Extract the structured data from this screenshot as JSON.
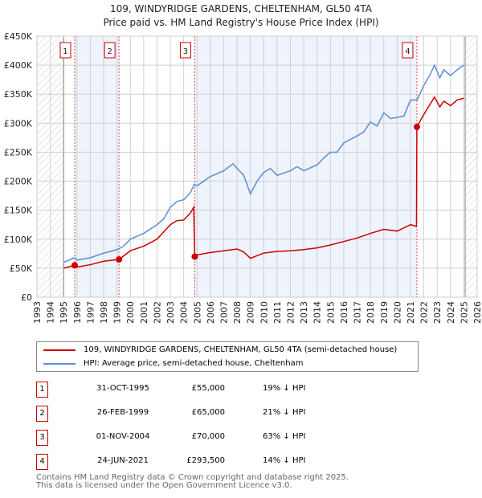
{
  "chart_data": {
    "type": "line",
    "title": "109, WINDYRIDGE GARDENS, CHELTENHAM, GL50 4TA",
    "subtitle": "Price paid vs. HM Land Registry's House Price Index (HPI)",
    "xlim": [
      1993,
      2026
    ],
    "ylim": [
      0,
      450000
    ],
    "x_ticks": [
      "1993",
      "1994",
      "1995",
      "1996",
      "1997",
      "1998",
      "1999",
      "2000",
      "2001",
      "2002",
      "2003",
      "2004",
      "2005",
      "2006",
      "2007",
      "2008",
      "2009",
      "2010",
      "2011",
      "2012",
      "2013",
      "2014",
      "2015",
      "2016",
      "2017",
      "2018",
      "2019",
      "2020",
      "2021",
      "2022",
      "2023",
      "2024",
      "2025",
      "2026"
    ],
    "y_ticks": [
      {
        "v": 0,
        "l": "£0"
      },
      {
        "v": 50000,
        "l": "£50K"
      },
      {
        "v": 100000,
        "l": "£100K"
      },
      {
        "v": 150000,
        "l": "£150K"
      },
      {
        "v": 200000,
        "l": "£200K"
      },
      {
        "v": 250000,
        "l": "£250K"
      },
      {
        "v": 300000,
        "l": "£300K"
      },
      {
        "v": 350000,
        "l": "£350K"
      },
      {
        "v": 400000,
        "l": "£400K"
      },
      {
        "v": 450000,
        "l": "£450K"
      }
    ],
    "grid": true,
    "hatched_ranges": [
      [
        1993,
        1995
      ],
      [
        2025.1,
        2026
      ]
    ],
    "shaded_ranges": [
      [
        1995.83,
        1999.15
      ],
      [
        2004.83,
        2021.48
      ]
    ],
    "series": [
      {
        "name": "109, WINDYRIDGE GARDENS, CHELTENHAM, GL50 4TA (semi-detached house)",
        "color": "#cc0000",
        "x": [
          1995,
          1995.83,
          1996,
          1997,
          1998,
          1999.15,
          2000,
          2001,
          2002,
          2003,
          2003.5,
          2004,
          2004.5,
          2004.75,
          2004.83,
          2005,
          2006,
          2007,
          2008,
          2008.5,
          2009,
          2010,
          2011,
          2012,
          2013,
          2014,
          2015,
          2016,
          2017,
          2018,
          2019,
          2020,
          2021,
          2021.45,
          2021.48,
          2022,
          2022.8,
          2023.2,
          2023.5,
          2024,
          2024.5,
          2025
        ],
        "y": [
          50000,
          55000,
          52000,
          56000,
          62000,
          65000,
          80000,
          88000,
          100000,
          125000,
          132000,
          133000,
          145000,
          155000,
          70000,
          73000,
          77000,
          80000,
          83000,
          78000,
          67000,
          76000,
          79000,
          80000,
          82000,
          85000,
          90000,
          96000,
          102000,
          110000,
          117000,
          114000,
          125000,
          122000,
          293500,
          315000,
          345000,
          328000,
          338000,
          330000,
          340000,
          343000
        ]
      },
      {
        "name": "HPI: Average price, semi-detached house, Cheltenham",
        "color": "#5b8fd4",
        "x": [
          1995,
          1995.8,
          1996,
          1997,
          1998,
          1999,
          1999.5,
          2000,
          2001,
          2002,
          2002.5,
          2003,
          2003.5,
          2004,
          2004.5,
          2004.8,
          2005,
          2006,
          2007,
          2007.7,
          2008,
          2008.5,
          2009,
          2009.5,
          2010,
          2010.5,
          2011,
          2012,
          2012.5,
          2013,
          2014,
          2014.5,
          2015,
          2015.5,
          2016,
          2017,
          2017.5,
          2018,
          2018.5,
          2019,
          2019.5,
          2020,
          2020.5,
          2021,
          2021.5,
          2022,
          2022.5,
          2022.8,
          2023.2,
          2023.5,
          2024,
          2024.5,
          2025
        ],
        "y": [
          60000,
          68000,
          64000,
          68000,
          76000,
          82000,
          88000,
          100000,
          110000,
          125000,
          135000,
          155000,
          165000,
          168000,
          180000,
          195000,
          192000,
          208000,
          218000,
          230000,
          222000,
          210000,
          178000,
          200000,
          215000,
          222000,
          210000,
          218000,
          225000,
          218000,
          228000,
          240000,
          250000,
          250000,
          266000,
          278000,
          285000,
          302000,
          295000,
          318000,
          308000,
          310000,
          312000,
          340000,
          340000,
          365000,
          385000,
          400000,
          378000,
          392000,
          382000,
          392000,
          400000
        ]
      }
    ],
    "sales": [
      {
        "n": "1",
        "x": 1995.83,
        "y": 55000,
        "date": "31-OCT-1995",
        "price": "£55,000",
        "hpi": "19% ↓ HPI"
      },
      {
        "n": "2",
        "x": 1999.15,
        "y": 65000,
        "date": "26-FEB-1999",
        "price": "£65,000",
        "hpi": "21% ↓ HPI"
      },
      {
        "n": "3",
        "x": 2004.83,
        "y": 70000,
        "date": "01-NOV-2004",
        "price": "£70,000",
        "hpi": "63% ↓ HPI"
      },
      {
        "n": "4",
        "x": 2021.48,
        "y": 293500,
        "date": "24-JUN-2021",
        "price": "£293,500",
        "hpi": "14% ↓ HPI"
      }
    ]
  },
  "footer": {
    "line1": "Contains HM Land Registry data © Crown copyright and database right 2025.",
    "line2": "This data is licensed under the Open Government Licence v3.0."
  }
}
